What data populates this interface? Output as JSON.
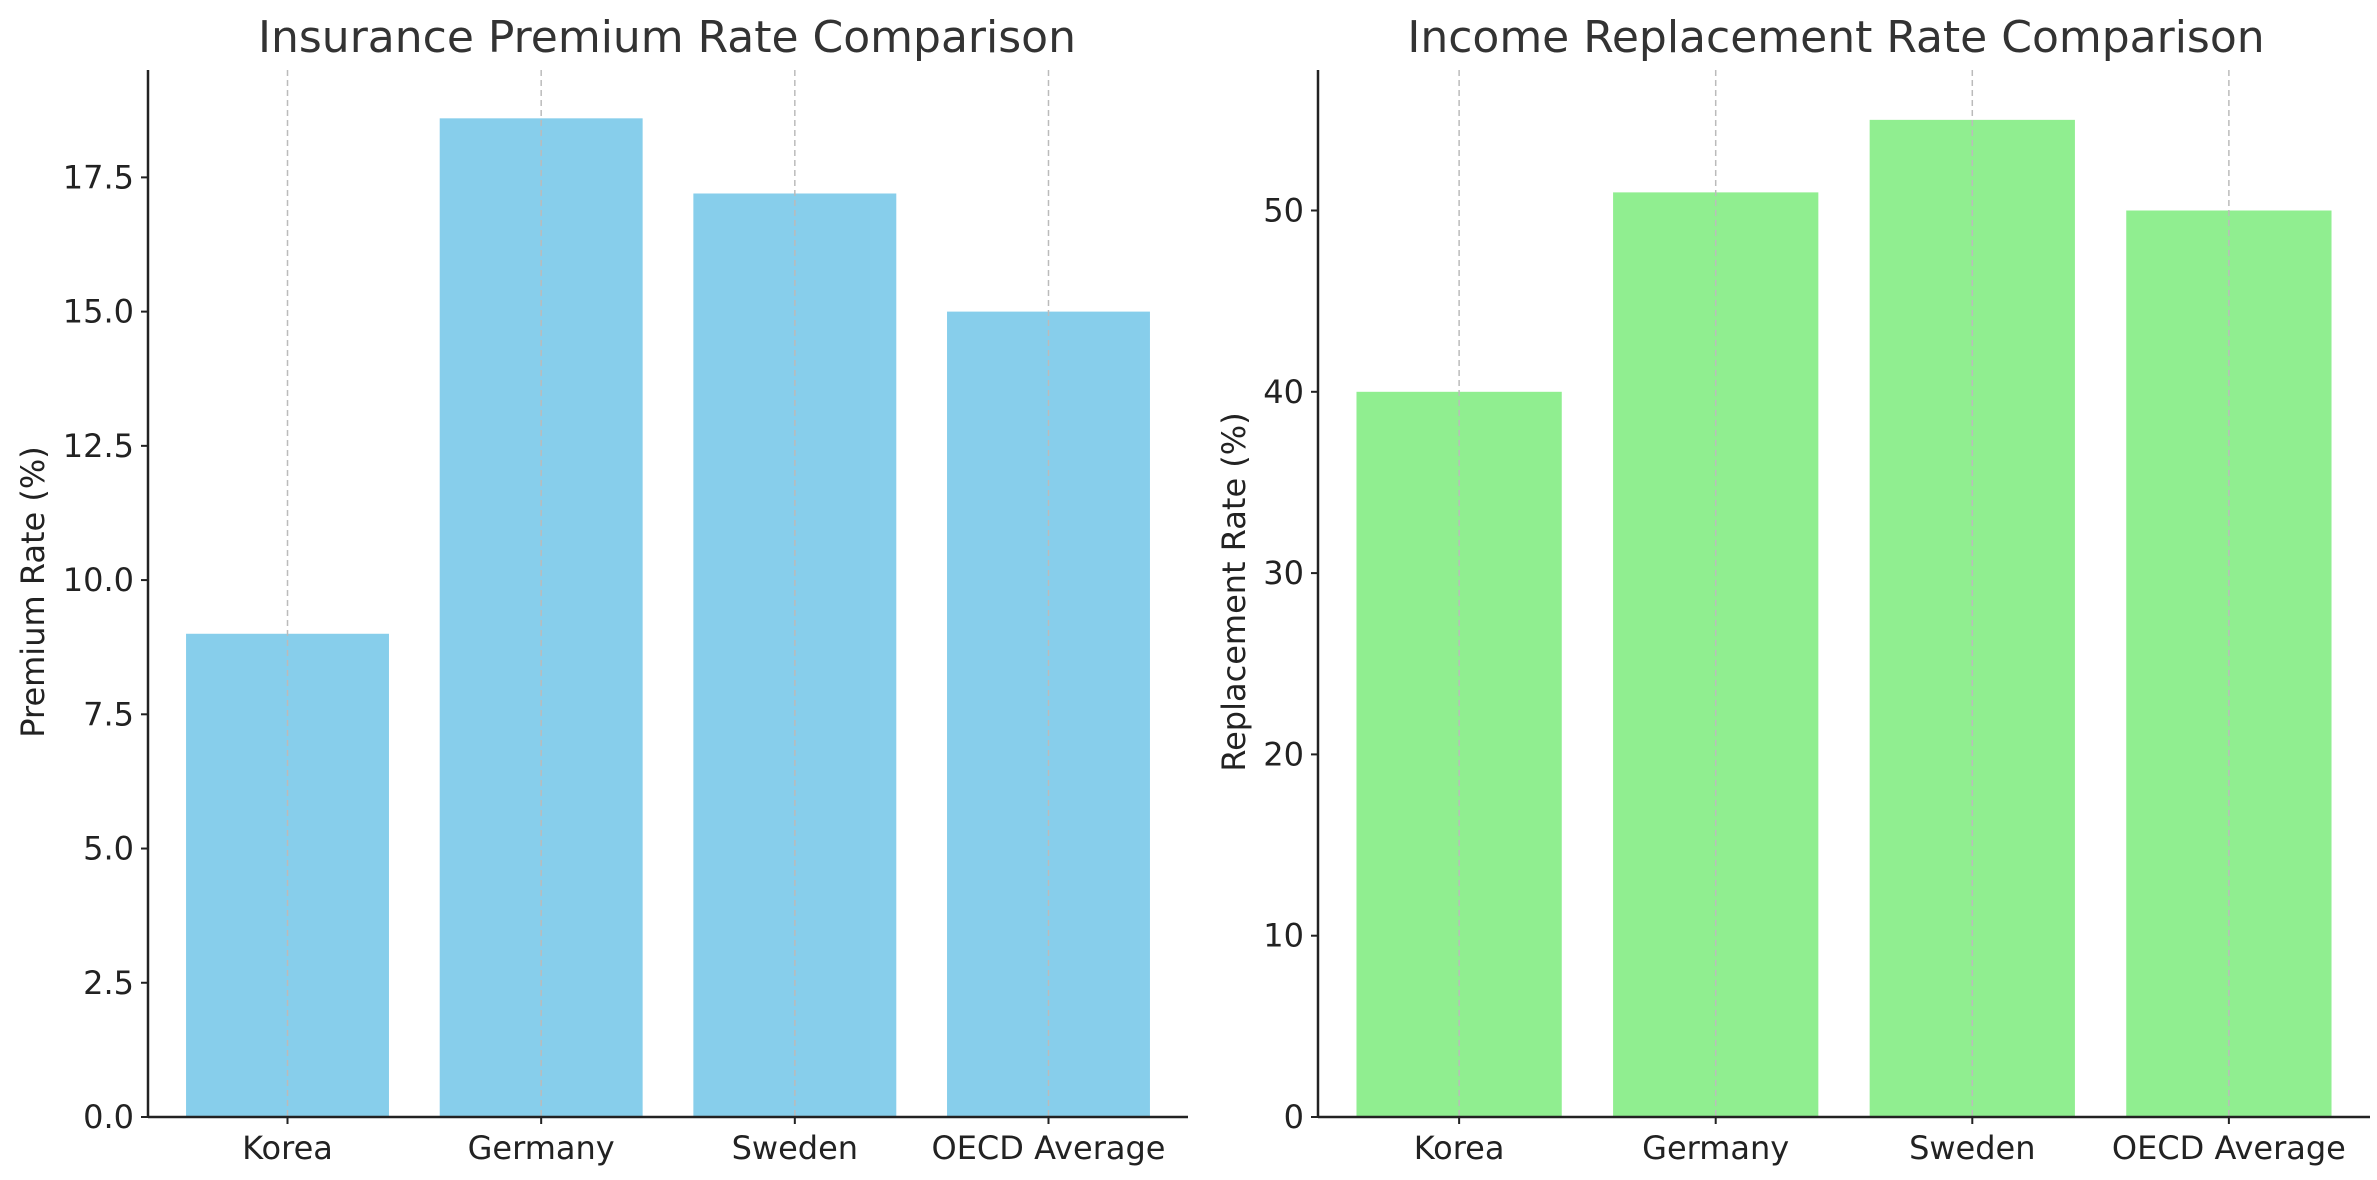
{
  "chart_data": [
    {
      "type": "bar",
      "title": "Insurance Premium Rate Comparison",
      "xlabel": "",
      "ylabel": "Premium Rate (%)",
      "categories": [
        "Korea",
        "Germany",
        "Sweden",
        "OECD Average"
      ],
      "values": [
        9.0,
        18.6,
        17.2,
        15.0
      ],
      "ylim": [
        0,
        19.5
      ],
      "yticks": [
        0.0,
        2.5,
        5.0,
        7.5,
        10.0,
        12.5,
        15.0,
        17.5
      ],
      "ytick_labels": [
        "0.0",
        "2.5",
        "5.0",
        "7.5",
        "10.0",
        "12.5",
        "15.0",
        "17.5"
      ],
      "bar_color": "#87CEEB",
      "grid": "vertical dashed"
    },
    {
      "type": "bar",
      "title": "Income Replacement Rate Comparison",
      "xlabel": "",
      "ylabel": "Replacement Rate (%)",
      "categories": [
        "Korea",
        "Germany",
        "Sweden",
        "OECD Average"
      ],
      "values": [
        40,
        51,
        55,
        50
      ],
      "ylim": [
        0,
        57.75
      ],
      "yticks": [
        0,
        10,
        20,
        30,
        40,
        50
      ],
      "ytick_labels": [
        "0",
        "10",
        "20",
        "30",
        "40",
        "50"
      ],
      "bar_color": "#90EE90",
      "grid": "vertical dashed"
    }
  ]
}
